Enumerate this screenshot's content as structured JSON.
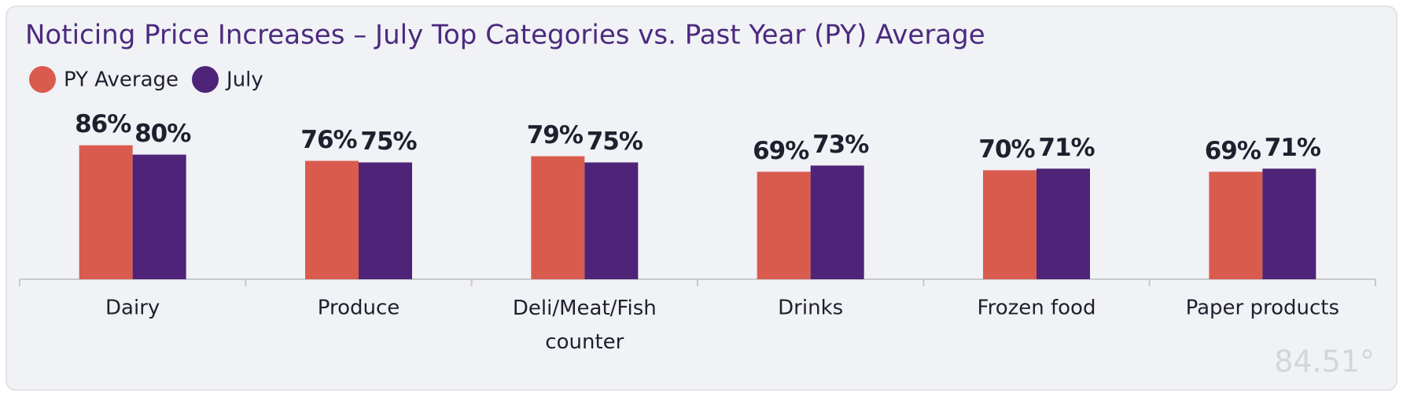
{
  "chart_data": {
    "type": "bar",
    "title": "Noticing Price Increases – July Top Categories vs. Past Year (PY) Average",
    "categories": [
      "Dairy",
      "Produce",
      "Deli/Meat/Fish counter",
      "Drinks",
      "Frozen food",
      "Paper products"
    ],
    "series": [
      {
        "name": "PY Average",
        "color": "#d95b4e",
        "values": [
          86,
          76,
          79,
          69,
          70,
          69
        ],
        "value_labels": [
          "86%",
          "76%",
          "79%",
          "69%",
          "70%",
          "69%"
        ]
      },
      {
        "name": "July",
        "color": "#4e2378",
        "values": [
          80,
          75,
          75,
          73,
          71,
          71
        ],
        "value_labels": [
          "80%",
          "75%",
          "75%",
          "73%",
          "71%",
          "71%"
        ]
      }
    ],
    "ylim": [
      0,
      100
    ],
    "logo": "84.51°"
  }
}
